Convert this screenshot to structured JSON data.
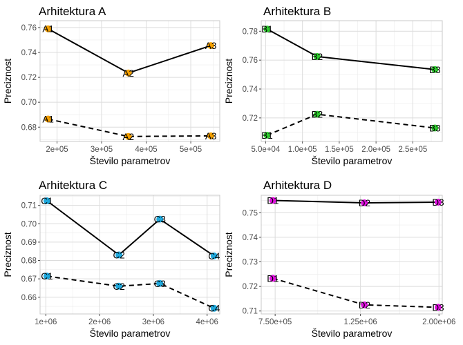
{
  "chart_data": [
    {
      "type": "line",
      "title": "Arhitektura A",
      "xlabel": "Število parametrov",
      "ylabel": "Preciznost",
      "color": "#F5A000",
      "x_ticks": [
        200000,
        300000,
        400000,
        500000
      ],
      "x_tick_labels": [
        "2e+05",
        "3e+05",
        "4e+05",
        "5e+05"
      ],
      "y_ticks": [
        0.68,
        0.7,
        0.72,
        0.74,
        0.76
      ],
      "y_tick_labels": [
        "0.68",
        "0.70",
        "0.72",
        "0.74",
        "0.76"
      ],
      "xlim": [
        162000,
        565000
      ],
      "ylim": [
        0.6685,
        0.7655
      ],
      "series": [
        {
          "line": "solid",
          "x": [
            180000,
            360000,
            545000
          ],
          "y": [
            0.759,
            0.7235,
            0.7455
          ],
          "labels": [
            "A1",
            "A2",
            "A3"
          ]
        },
        {
          "line": "dashed",
          "x": [
            180000,
            360000,
            545000
          ],
          "y": [
            0.6865,
            0.6725,
            0.673
          ],
          "labels": [
            "A1",
            "A2",
            "A3"
          ]
        }
      ]
    },
    {
      "type": "line",
      "title": "Arhitektura B",
      "xlabel": "Število parametrov",
      "ylabel": "Preciznost",
      "color": "#2ECC2E",
      "x_ticks": [
        50000,
        100000,
        150000,
        200000,
        250000
      ],
      "x_tick_labels": [
        "5.0e+04",
        "1.0e+05",
        "1.5e+05",
        "2.0e+05",
        "2.5e+05"
      ],
      "y_ticks": [
        0.72,
        0.74,
        0.76,
        0.78
      ],
      "y_tick_labels": [
        "0.72",
        "0.74",
        "0.76",
        "0.78"
      ],
      "xlim": [
        44000,
        290000
      ],
      "ylim": [
        0.7037,
        0.7873
      ],
      "series": [
        {
          "line": "solid",
          "x": [
            52000,
            120000,
            280000
          ],
          "y": [
            0.7815,
            0.7625,
            0.7535
          ],
          "labels": [
            "B1",
            "B2",
            "B3"
          ]
        },
        {
          "line": "dashed",
          "x": [
            52000,
            120000,
            280000
          ],
          "y": [
            0.708,
            0.7225,
            0.713
          ],
          "labels": [
            "B1",
            "B2",
            "B3"
          ]
        }
      ]
    },
    {
      "type": "line",
      "title": "Arhitektura C",
      "xlabel": "Število parametrov",
      "ylabel": "Preciznost",
      "color": "#1EA8DC",
      "x_ticks": [
        1000000,
        2000000,
        3000000,
        4000000
      ],
      "x_tick_labels": [
        "1e+06",
        "2e+06",
        "3e+06",
        "4e+06"
      ],
      "y_ticks": [
        0.66,
        0.67,
        0.68,
        0.69,
        0.7,
        0.71
      ],
      "y_tick_labels": [
        "0.66",
        "0.67",
        "0.68",
        "0.69",
        "0.70",
        "0.71"
      ],
      "xlim": [
        893000,
        4235000
      ],
      "ylim": [
        0.6509,
        0.7155
      ],
      "series": [
        {
          "line": "solid",
          "x": [
            1020000,
            2360000,
            3120000,
            4130000
          ],
          "y": [
            0.7125,
            0.683,
            0.7025,
            0.6825
          ],
          "labels": [
            "C1",
            "C2",
            "C3",
            "C4"
          ]
        },
        {
          "line": "dashed",
          "x": [
            1020000,
            2360000,
            3120000,
            4130000
          ],
          "y": [
            0.6715,
            0.666,
            0.6675,
            0.654
          ],
          "labels": [
            "C1",
            "C2",
            "C3",
            "C4"
          ]
        }
      ]
    },
    {
      "type": "line",
      "title": "Arhitektura D",
      "xlabel": "Število parametrov",
      "ylabel": "Preciznost",
      "color": "#E010E0",
      "x_scale": "log",
      "x_ticks": [
        750000,
        1250000,
        2000000
      ],
      "x_tick_labels": [
        "7.50e+05",
        "1.25e+06",
        "2.00e+06"
      ],
      "y_ticks": [
        0.71,
        0.72,
        0.73,
        0.74,
        0.75
      ],
      "y_tick_labels": [
        "0.71",
        "0.72",
        "0.73",
        "0.74",
        "0.75"
      ],
      "xlim": [
        690000,
        2040000
      ],
      "ylim": [
        0.7088,
        0.7571
      ],
      "series": [
        {
          "line": "solid",
          "x": [
            740000,
            1280000,
            1990000
          ],
          "y": [
            0.755,
            0.754,
            0.7543
          ],
          "labels": [
            "D1",
            "D2",
            "D3"
          ]
        },
        {
          "line": "dashed",
          "x": [
            740000,
            1280000,
            1990000
          ],
          "y": [
            0.7233,
            0.7125,
            0.7115
          ],
          "labels": [
            "D1",
            "D2",
            "D3"
          ]
        }
      ]
    }
  ]
}
